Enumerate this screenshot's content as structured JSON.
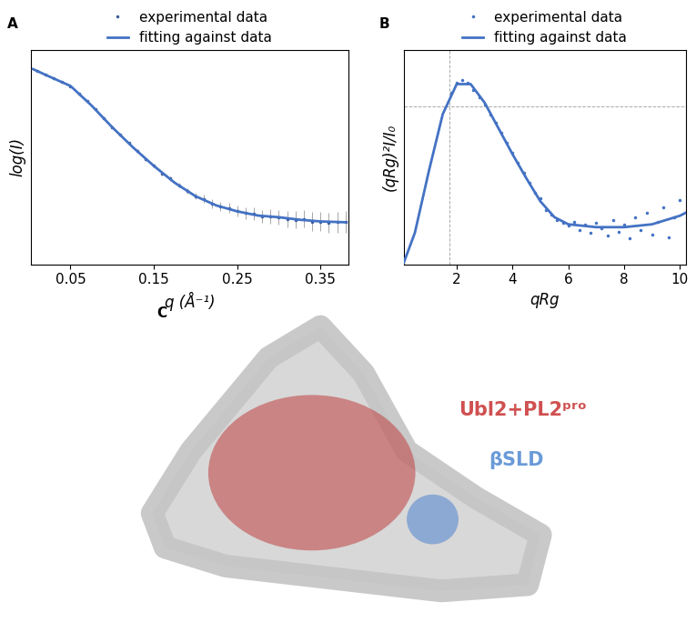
{
  "chart_data": [
    {
      "type": "line",
      "panel_label": "A",
      "x_label": "q (Å⁻¹)",
      "y_label": "log(I)",
      "xlim": [
        0.003,
        0.383
      ],
      "xticks": [
        0.05,
        0.15,
        0.25,
        0.35
      ],
      "ylim": [
        -2.4,
        0.15
      ],
      "tick_labels": "x",
      "legend": "upper center",
      "series": [
        {
          "name": "experimental data",
          "type": "scatter",
          "marker": "point",
          "color": "#3a5a9a",
          "x": [
            0.01,
            0.02,
            0.03,
            0.04,
            0.05,
            0.06,
            0.07,
            0.08,
            0.09,
            0.1,
            0.11,
            0.12,
            0.13,
            0.14,
            0.15,
            0.16,
            0.17,
            0.18,
            0.19,
            0.2,
            0.21,
            0.22,
            0.23,
            0.24,
            0.25,
            0.26,
            0.27,
            0.28,
            0.29,
            0.3,
            0.31,
            0.32,
            0.33,
            0.34,
            0.35,
            0.36,
            0.37,
            0.38
          ],
          "values": [
            -0.1,
            -0.14,
            -0.19,
            -0.23,
            -0.28,
            -0.37,
            -0.46,
            -0.56,
            -0.66,
            -0.77,
            -0.86,
            -0.96,
            -1.05,
            -1.15,
            -1.23,
            -1.32,
            -1.38,
            -1.46,
            -1.53,
            -1.59,
            -1.62,
            -1.68,
            -1.71,
            -1.73,
            -1.77,
            -1.79,
            -1.8,
            -1.83,
            -1.83,
            -1.84,
            -1.86,
            -1.87,
            -1.86,
            -1.89,
            -1.89,
            -1.91,
            -1.9,
            -1.9
          ],
          "errors": [
            0.005,
            0.005,
            0.006,
            0.006,
            0.007,
            0.008,
            0.008,
            0.009,
            0.01,
            0.01,
            0.012,
            0.014,
            0.015,
            0.018,
            0.02,
            0.022,
            0.025,
            0.03,
            0.035,
            0.04,
            0.045,
            0.05,
            0.055,
            0.06,
            0.065,
            0.07,
            0.075,
            0.08,
            0.085,
            0.09,
            0.095,
            0.1,
            0.105,
            0.11,
            0.115,
            0.12,
            0.125,
            0.13
          ]
        },
        {
          "name": "fitting against data",
          "type": "line",
          "line_style": "solid",
          "color": "#4472c4",
          "x": [
            0.005,
            0.025,
            0.05,
            0.075,
            0.1,
            0.125,
            0.15,
            0.175,
            0.2,
            0.225,
            0.25,
            0.275,
            0.3,
            0.325,
            0.35,
            0.38
          ],
          "values": [
            -0.08,
            -0.17,
            -0.28,
            -0.51,
            -0.77,
            -1.01,
            -1.23,
            -1.43,
            -1.59,
            -1.7,
            -1.77,
            -1.82,
            -1.84,
            -1.87,
            -1.89,
            -1.9
          ]
        }
      ]
    },
    {
      "type": "line",
      "panel_label": "B",
      "x_label": "qRg",
      "y_label": "(qRg)²I/I₀",
      "xlim": [
        0.1,
        10.2
      ],
      "xticks": [
        2,
        4,
        6,
        8,
        10
      ],
      "ylim": [
        0,
        1.5
      ],
      "tick_labels": "x",
      "legend": "upper center",
      "reference_lines": {
        "x": 1.73,
        "y": 1.104
      },
      "series": [
        {
          "name": "experimental data",
          "type": "scatter",
          "marker": "point",
          "color": "#4472c4",
          "x": [
            1.8,
            2.0,
            2.2,
            2.4,
            2.6,
            2.8,
            3.0,
            3.2,
            3.4,
            3.6,
            3.8,
            4.0,
            4.2,
            4.4,
            4.6,
            4.8,
            5.0,
            5.2,
            5.4,
            5.6,
            5.8,
            6.0,
            6.2,
            6.4,
            6.6,
            6.8,
            7.0,
            7.2,
            7.4,
            7.6,
            7.8,
            8.0,
            8.2,
            8.4,
            8.6,
            8.8,
            9.0,
            9.2,
            9.4,
            9.6,
            9.8,
            10.0
          ],
          "values": [
            1.2,
            1.27,
            1.29,
            1.27,
            1.22,
            1.17,
            1.12,
            1.05,
            0.99,
            0.92,
            0.85,
            0.78,
            0.71,
            0.64,
            0.57,
            0.5,
            0.46,
            0.38,
            0.35,
            0.31,
            0.29,
            0.27,
            0.3,
            0.24,
            0.28,
            0.22,
            0.29,
            0.25,
            0.2,
            0.31,
            0.23,
            0.28,
            0.18,
            0.33,
            0.24,
            0.36,
            0.21,
            0.3,
            0.4,
            0.19,
            0.33,
            0.45
          ]
        },
        {
          "name": "fitting against data",
          "type": "line",
          "line_style": "solid",
          "color": "#4472c4",
          "x": [
            0.1,
            0.5,
            1.0,
            1.5,
            2.0,
            2.5,
            3.0,
            3.5,
            4.0,
            4.5,
            5.0,
            5.5,
            6.0,
            7.0,
            8.0,
            9.0,
            10.0,
            10.2
          ],
          "values": [
            0.01,
            0.22,
            0.65,
            1.05,
            1.26,
            1.26,
            1.13,
            0.95,
            0.77,
            0.6,
            0.44,
            0.33,
            0.28,
            0.26,
            0.26,
            0.28,
            0.34,
            0.36
          ]
        }
      ]
    }
  ],
  "diagram": {
    "panel_label": "C",
    "labels": [
      {
        "text": "Ubl2+PL2ᵖʳᵒ",
        "color": "#d05050"
      },
      {
        "text": "βSLD",
        "color": "#6a9ad8"
      }
    ]
  }
}
